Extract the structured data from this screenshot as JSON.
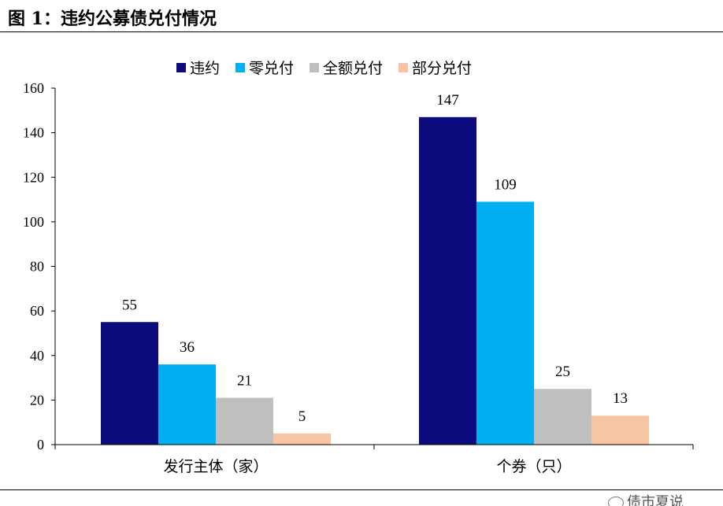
{
  "header": {
    "figure_title": "图 1：违约公募债兑付情况"
  },
  "watermark": {
    "icon": "wechat-icon",
    "text": "债市夏说"
  },
  "chart_data": {
    "type": "bar",
    "title": "图 1：违约公募债兑付情况",
    "xlabel": "",
    "ylabel": "",
    "ylim": [
      0,
      160
    ],
    "yticks": [
      0,
      20,
      40,
      60,
      80,
      100,
      120,
      140,
      160
    ],
    "grid": false,
    "legend_position": "top-center",
    "categories": [
      "发行主体（家）",
      "个券（只）"
    ],
    "series": [
      {
        "name": "违约",
        "color": "#0b0b7e",
        "values": [
          55,
          147
        ]
      },
      {
        "name": "零兑付",
        "color": "#00b0f0",
        "values": [
          36,
          109
        ]
      },
      {
        "name": "全额兑付",
        "color": "#bfbfbf",
        "values": [
          21,
          25
        ]
      },
      {
        "name": "部分兑付",
        "color": "#f8c5a4",
        "values": [
          5,
          13
        ]
      }
    ]
  }
}
